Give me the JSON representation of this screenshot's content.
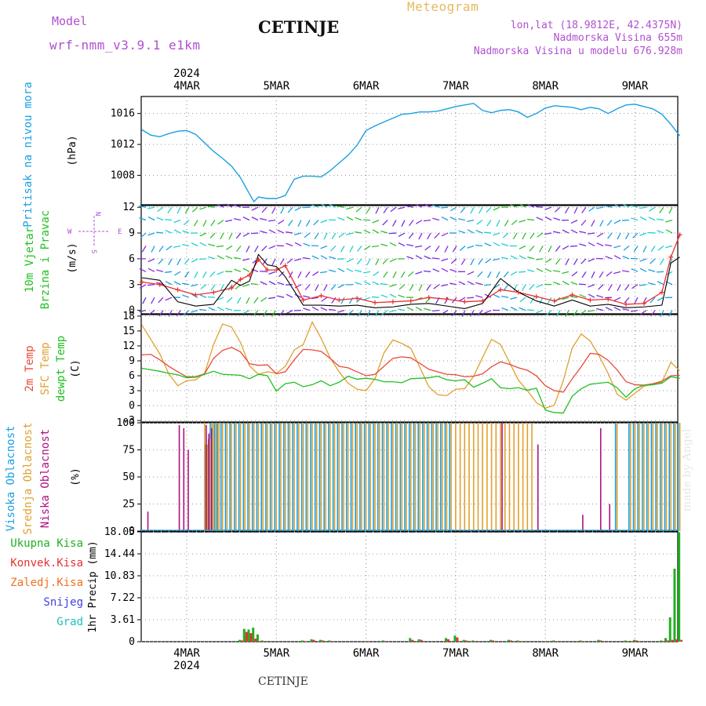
{
  "header": {
    "model_label": "Model",
    "model_name": "wrf-nmm_v3.9.1 e1km",
    "station": "CETINJE",
    "product": "Meteogram",
    "lonlat": "lon,lat (18.9812E, 42.4375N)",
    "elevation": "Nadmorska Visina 655m",
    "model_elevation": "Nadmorska Visina u modelu 676.928m",
    "footer_station": "CETINJE",
    "watermark": "made by Angel"
  },
  "colors": {
    "pressure": "#1aa0e0",
    "wind_speed": "#e83030",
    "gust": "#000000",
    "t2m": "#e84a3a",
    "sfc": "#e0a030",
    "dewpt": "#20c020",
    "high_cloud": "#1aa0e0",
    "mid_cloud": "#e0a030",
    "low_cloud": "#b01080",
    "total_precip": "#20b020",
    "conv_precip": "#e83030",
    "frozen_precip": "#f07020",
    "snow": "#4040e0",
    "hail": "#20c0c0",
    "purple_text": "#b050d0",
    "meteogram_text": "#e8b860"
  },
  "time_axis": {
    "year": "2024",
    "days": [
      "4MAR",
      "5MAR",
      "6MAR",
      "7MAR",
      "8MAR",
      "9MAR"
    ]
  },
  "chart_data": [
    {
      "type": "line",
      "title": "",
      "ylabel_1": "Pritisak na nivou mora",
      "ylabel_2": "(hPa)",
      "yticks": [
        "1008",
        "1012",
        "1016"
      ],
      "ylim": [
        1004.2,
        1018.2
      ],
      "x_units": "days since 4MAR 00UTC",
      "xlim": [
        -0.5,
        5.5
      ],
      "x": [
        -0.5,
        -0.4,
        -0.3,
        -0.2,
        -0.1,
        0,
        0.1,
        0.2,
        0.3,
        0.4,
        0.5,
        0.6,
        0.7,
        0.75,
        0.8,
        0.9,
        1,
        1.1,
        1.2,
        1.3,
        1.4,
        1.5,
        1.6,
        1.7,
        1.8,
        1.9,
        2,
        2.1,
        2.2,
        2.3,
        2.4,
        2.5,
        2.6,
        2.7,
        2.8,
        2.9,
        3,
        3.1,
        3.2,
        3.3,
        3.4,
        3.5,
        3.6,
        3.7,
        3.8,
        3.9,
        4,
        4.1,
        4.2,
        4.3,
        4.4,
        4.5,
        4.6,
        4.7,
        4.8,
        4.9,
        5,
        5.1,
        5.2,
        5.3,
        5.4,
        5.5
      ],
      "series": [
        {
          "name": "",
          "values": [
            13.9,
            13.2,
            13.0,
            13.4,
            13.7,
            13.8,
            13.3,
            12.2,
            11.1,
            10.2,
            9.2,
            7.7,
            5.6,
            4.6,
            5.2,
            5.0,
            5.0,
            5.4,
            7.5,
            7.9,
            7.9,
            7.8,
            8.6,
            9.6,
            10.6,
            11.9,
            13.8,
            14.4,
            14.9,
            15.4,
            15.9,
            16.0,
            16.2,
            16.2,
            16.3,
            16.6,
            16.9,
            17.1,
            17.3,
            16.4,
            16.1,
            16.4,
            16.5,
            16.2,
            15.5,
            16.0,
            16.7,
            17.0,
            16.9,
            16.8,
            16.5,
            16.8,
            16.6,
            16.0,
            16.6,
            17.1,
            17.2,
            16.9,
            16.6,
            15.9,
            14.6,
            13.1
          ]
        }
      ]
    },
    {
      "type": "line",
      "title": "",
      "ylabel_1": "10m Vjetar",
      "ylabel_2": "Brzina i Pravac",
      "ylabel_3": "(m/s)",
      "compass": [
        "N",
        "E",
        "S",
        "W"
      ],
      "yticks": [
        "0",
        "3",
        "6",
        "9",
        "12"
      ],
      "ylim": [
        -0.4,
        12.2
      ],
      "x": [
        -0.5,
        -0.3,
        -0.1,
        0.1,
        0.3,
        0.5,
        0.6,
        0.7,
        0.8,
        0.9,
        1.0,
        1.1,
        1.3,
        1.5,
        1.7,
        1.9,
        2.1,
        2.3,
        2.5,
        2.7,
        2.9,
        3.1,
        3.3,
        3.5,
        3.7,
        3.9,
        4.1,
        4.3,
        4.5,
        4.7,
        4.9,
        5.1,
        5.3,
        5.4,
        5.5
      ],
      "series": [
        {
          "name": "",
          "values": [
            3.3,
            3.0,
            2.4,
            1.8,
            2.1,
            2.6,
            3.6,
            4.1,
            5.9,
            4.7,
            4.7,
            5.2,
            1.2,
            1.7,
            1.2,
            1.4,
            0.9,
            1.0,
            1.1,
            1.5,
            1.3,
            1.0,
            1.1,
            2.4,
            2.1,
            1.6,
            1.1,
            1.8,
            1.2,
            1.3,
            0.7,
            0.8,
            2.1,
            6.2,
            8.8
          ]
        },
        {
          "name": "",
          "values": [
            3.8,
            3.5,
            1.0,
            0.5,
            0.7,
            3.5,
            2.9,
            3.4,
            6.5,
            5.3,
            5.1,
            3.9,
            0.6,
            0.6,
            0.5,
            0.6,
            0.3,
            0.4,
            0.7,
            0.8,
            0.5,
            0.2,
            0.8,
            3.7,
            2.1,
            1.1,
            0.5,
            1.2,
            0.5,
            0.7,
            0.3,
            0.4,
            0.6,
            5.5,
            6.2
          ]
        }
      ]
    },
    {
      "type": "line",
      "title": "",
      "ylabel_1": "2m Temp",
      "ylabel_2": "SFC Temp",
      "ylabel_3": "dewpt Temp",
      "ylabel_4": "(C)",
      "yticks": [
        "-3",
        "0",
        "3",
        "6",
        "9",
        "12",
        "15",
        "18"
      ],
      "ylim": [
        -3.3,
        18.3
      ],
      "x": [
        -0.5,
        -0.4,
        -0.3,
        -0.2,
        -0.1,
        0,
        0.1,
        0.2,
        0.3,
        0.4,
        0.5,
        0.6,
        0.7,
        0.8,
        0.9,
        1,
        1.1,
        1.2,
        1.3,
        1.4,
        1.5,
        1.6,
        1.7,
        1.8,
        1.9,
        2,
        2.1,
        2.2,
        2.3,
        2.4,
        2.5,
        2.6,
        2.7,
        2.8,
        2.9,
        3,
        3.1,
        3.2,
        3.3,
        3.4,
        3.5,
        3.6,
        3.7,
        3.8,
        3.9,
        4,
        4.1,
        4.2,
        4.3,
        4.4,
        4.5,
        4.6,
        4.7,
        4.8,
        4.9,
        5,
        5.1,
        5.2,
        5.3,
        5.4,
        5.5
      ],
      "series": [
        {
          "name": "",
          "values": [
            10.2,
            10.3,
            9.2,
            7.9,
            6.8,
            5.8,
            5.8,
            6.4,
            9.5,
            11.1,
            11.7,
            10.8,
            8.4,
            8.1,
            8.2,
            6.4,
            6.8,
            9.2,
            11.3,
            11.2,
            10.9,
            9.5,
            7.9,
            7.6,
            6.8,
            6.0,
            6.3,
            7.9,
            9.5,
            9.8,
            9.6,
            8.5,
            7.3,
            6.8,
            6.3,
            6.2,
            5.8,
            5.9,
            6.4,
            7.8,
            8.8,
            8.3,
            7.6,
            7.1,
            6.0,
            4.0,
            3.0,
            2.7,
            5.4,
            7.8,
            10.5,
            10.3,
            9.1,
            7.2,
            4.8,
            4.2,
            4.1,
            4.4,
            4.9,
            6.0,
            6.1
          ]
        },
        {
          "name": "",
          "values": [
            16.2,
            13.3,
            10.4,
            6.4,
            4.0,
            5.0,
            5.2,
            6.5,
            12.3,
            16.4,
            15.8,
            12.7,
            8.0,
            6.3,
            6.8,
            6.5,
            7.9,
            11.2,
            12.3,
            16.8,
            13.5,
            9.6,
            6.8,
            4.5,
            3.3,
            3.0,
            5.4,
            10.6,
            13.2,
            12.5,
            11.5,
            7.7,
            3.8,
            2.2,
            2.0,
            3.3,
            3.4,
            5.9,
            9.7,
            13.3,
            12.3,
            8.7,
            5.1,
            3.0,
            0.6,
            -0.5,
            0.1,
            5.0,
            11.6,
            14.4,
            13.0,
            10.0,
            6.5,
            2.3,
            1.1,
            2.5,
            3.9,
            4.3,
            4.7,
            8.7,
            7.0
          ]
        },
        {
          "name": "",
          "values": [
            7.5,
            7.2,
            6.9,
            6.5,
            6.2,
            5.6,
            5.7,
            6.3,
            6.9,
            6.3,
            6.2,
            6.1,
            5.4,
            6.3,
            6.0,
            2.9,
            4.4,
            4.7,
            3.8,
            4.2,
            5.0,
            4.0,
            4.7,
            5.9,
            5.3,
            5.5,
            5.3,
            4.8,
            4.8,
            4.6,
            5.4,
            5.5,
            5.6,
            5.9,
            5.2,
            5.0,
            5.2,
            3.7,
            4.5,
            5.4,
            3.6,
            3.4,
            3.6,
            3.1,
            3.5,
            -0.9,
            -1.4,
            -1.5,
            1.9,
            3.4,
            4.3,
            4.5,
            4.7,
            3.6,
            1.7,
            3.4,
            4.1,
            4.2,
            4.5,
            5.8,
            5.5
          ]
        }
      ]
    },
    {
      "type": "bar",
      "title": "",
      "ylabel_1": "Visoka Oblacnost",
      "ylabel_2": "Srednja Oblacnost",
      "ylabel_3": "Niska Oblacnost",
      "ylabel_4": "(%)",
      "yticks": [
        "0",
        "25",
        "50",
        "75",
        "100"
      ],
      "ylim": [
        0,
        100
      ],
      "x": [
        -0.45,
        -0.1,
        -0.05,
        0,
        0.05,
        0.16,
        0.2,
        0.23,
        0.26,
        0.28,
        0.3,
        0.33,
        0.36,
        0.4,
        0.45,
        0.5,
        0.55,
        0.6,
        0.65,
        0.7,
        0.75,
        0.8,
        0.85,
        0.9,
        0.95,
        1,
        1.05,
        1.1,
        1.15,
        1.2,
        1.25,
        1.3,
        1.35,
        1.4,
        1.45,
        1.5,
        1.55,
        1.6,
        1.65,
        1.7,
        1.75,
        1.8,
        1.85,
        1.9,
        1.95,
        2,
        2.05,
        2.1,
        2.15,
        2.2,
        2.25,
        2.3,
        2.35,
        2.4,
        2.45,
        2.5,
        2.55,
        2.6,
        2.65,
        2.7,
        2.75,
        2.8,
        2.85,
        2.9,
        2.95,
        3,
        3.05,
        3.1,
        3.15,
        3.2,
        3.25,
        3.3,
        3.35,
        3.4,
        3.45,
        3.5,
        3.55,
        3.6,
        3.65,
        3.7,
        3.75,
        3.8,
        3.85,
        3.9,
        4.4,
        4.6,
        4.7,
        4.8,
        4.95,
        5,
        5.05,
        5.1,
        5.15,
        5.2,
        5.25,
        5.3,
        5.35,
        5.4,
        5.45,
        5.5
      ],
      "series": [
        {
          "name": "",
          "values": [
            0,
            0,
            0,
            0,
            0,
            0,
            0,
            80,
            85,
            100,
            100,
            100,
            100,
            100,
            100,
            100,
            100,
            100,
            100,
            100,
            100,
            100,
            100,
            100,
            100,
            100,
            100,
            100,
            100,
            100,
            100,
            100,
            100,
            100,
            100,
            100,
            100,
            100,
            100,
            100,
            100,
            100,
            100,
            100,
            100,
            100,
            100,
            100,
            100,
            100,
            100,
            100,
            100,
            100,
            100,
            100,
            100,
            100,
            100,
            100,
            100,
            100,
            100,
            100,
            100,
            0,
            0,
            0,
            0,
            0,
            0,
            0,
            0,
            0,
            0,
            0,
            0,
            0,
            0,
            0,
            0,
            0,
            0,
            0,
            0,
            0,
            0,
            100,
            100,
            100,
            100,
            100,
            100,
            100,
            100,
            100,
            100,
            100,
            100,
            100
          ]
        },
        {
          "name": "",
          "values": [
            0,
            0,
            0,
            0,
            0,
            0,
            100,
            80,
            85,
            100,
            100,
            100,
            100,
            100,
            100,
            100,
            100,
            100,
            100,
            100,
            100,
            100,
            100,
            100,
            100,
            100,
            100,
            100,
            100,
            100,
            100,
            100,
            100,
            100,
            100,
            100,
            100,
            100,
            100,
            100,
            100,
            100,
            100,
            100,
            100,
            100,
            100,
            100,
            100,
            100,
            100,
            100,
            100,
            100,
            100,
            100,
            100,
            100,
            100,
            100,
            100,
            100,
            100,
            100,
            100,
            100,
            100,
            100,
            100,
            100,
            100,
            100,
            100,
            100,
            100,
            100,
            100,
            100,
            100,
            100,
            100,
            100,
            100,
            0,
            0,
            0,
            0,
            100,
            100,
            100,
            100,
            100,
            100,
            100,
            100,
            100,
            100,
            100,
            100,
            100
          ]
        },
        {
          "name": "",
          "values": [
            18,
            98,
            95,
            75,
            0,
            0,
            98,
            90,
            95,
            0,
            0,
            0,
            0,
            0,
            0,
            0,
            0,
            0,
            0,
            0,
            0,
            0,
            0,
            0,
            0,
            0,
            0,
            0,
            0,
            0,
            0,
            0,
            0,
            0,
            0,
            0,
            0,
            0,
            0,
            0,
            0,
            0,
            0,
            0,
            0,
            0,
            0,
            0,
            0,
            0,
            0,
            0,
            0,
            0,
            0,
            0,
            0,
            0,
            0,
            0,
            0,
            0,
            0,
            0,
            0,
            0,
            0,
            0,
            0,
            0,
            0,
            0,
            0,
            0,
            0,
            100,
            0,
            0,
            0,
            0,
            0,
            0,
            0,
            80,
            15,
            95,
            25,
            0,
            0,
            0,
            0,
            0,
            0,
            0,
            0,
            0,
            0,
            0,
            0,
            0
          ]
        }
      ]
    },
    {
      "type": "bar",
      "title": "",
      "ylabel_1": "Ukupna Kisa",
      "ylabel_2": "Konvek.Kisa",
      "ylabel_3": "Zaledj.Kisa",
      "ylabel_4": "Snijeg",
      "ylabel_5": "Grad",
      "ylabel_6": "1hr Precip (mm)",
      "yticks": [
        "0",
        "3.61",
        "7.22",
        "10.83",
        "14.44",
        "18.05"
      ],
      "ylim": [
        0,
        18.05
      ],
      "x": [
        0.6,
        0.65,
        0.7,
        0.75,
        0.8,
        0.85,
        1.3,
        1.4,
        1.5,
        1.6,
        2.0,
        2.2,
        2.5,
        2.6,
        2.9,
        3.0,
        3.1,
        3.2,
        3.4,
        3.6,
        3.7,
        4.0,
        4.1,
        4.4,
        4.6,
        4.9,
        5.0,
        5.3,
        5.35,
        5.4,
        5.45,
        5.5
      ],
      "series": [
        {
          "name": "",
          "values": [
            0.3,
            2.1,
            2.0,
            2.3,
            1.2,
            0.2,
            0.2,
            0.4,
            0.3,
            0.2,
            0.1,
            0.2,
            0.6,
            0.4,
            0.6,
            1.0,
            0.3,
            0.2,
            0.3,
            0.3,
            0.2,
            0.1,
            0.2,
            0.2,
            0.3,
            0.2,
            0.3,
            0.2,
            0.6,
            4.0,
            12.0,
            18.0
          ]
        },
        {
          "name": "",
          "values": [
            0.2,
            1.6,
            1.4,
            0.5,
            0.1,
            0.1,
            0.1,
            0.3,
            0.2,
            0.1,
            0.1,
            0.1,
            0.3,
            0.3,
            0.4,
            0.7,
            0.2,
            0.1,
            0.2,
            0.2,
            0.1,
            0.1,
            0.1,
            0.1,
            0.2,
            0.1,
            0.2,
            0.1,
            0.2,
            0.3,
            0.4,
            0.3
          ]
        }
      ]
    }
  ]
}
